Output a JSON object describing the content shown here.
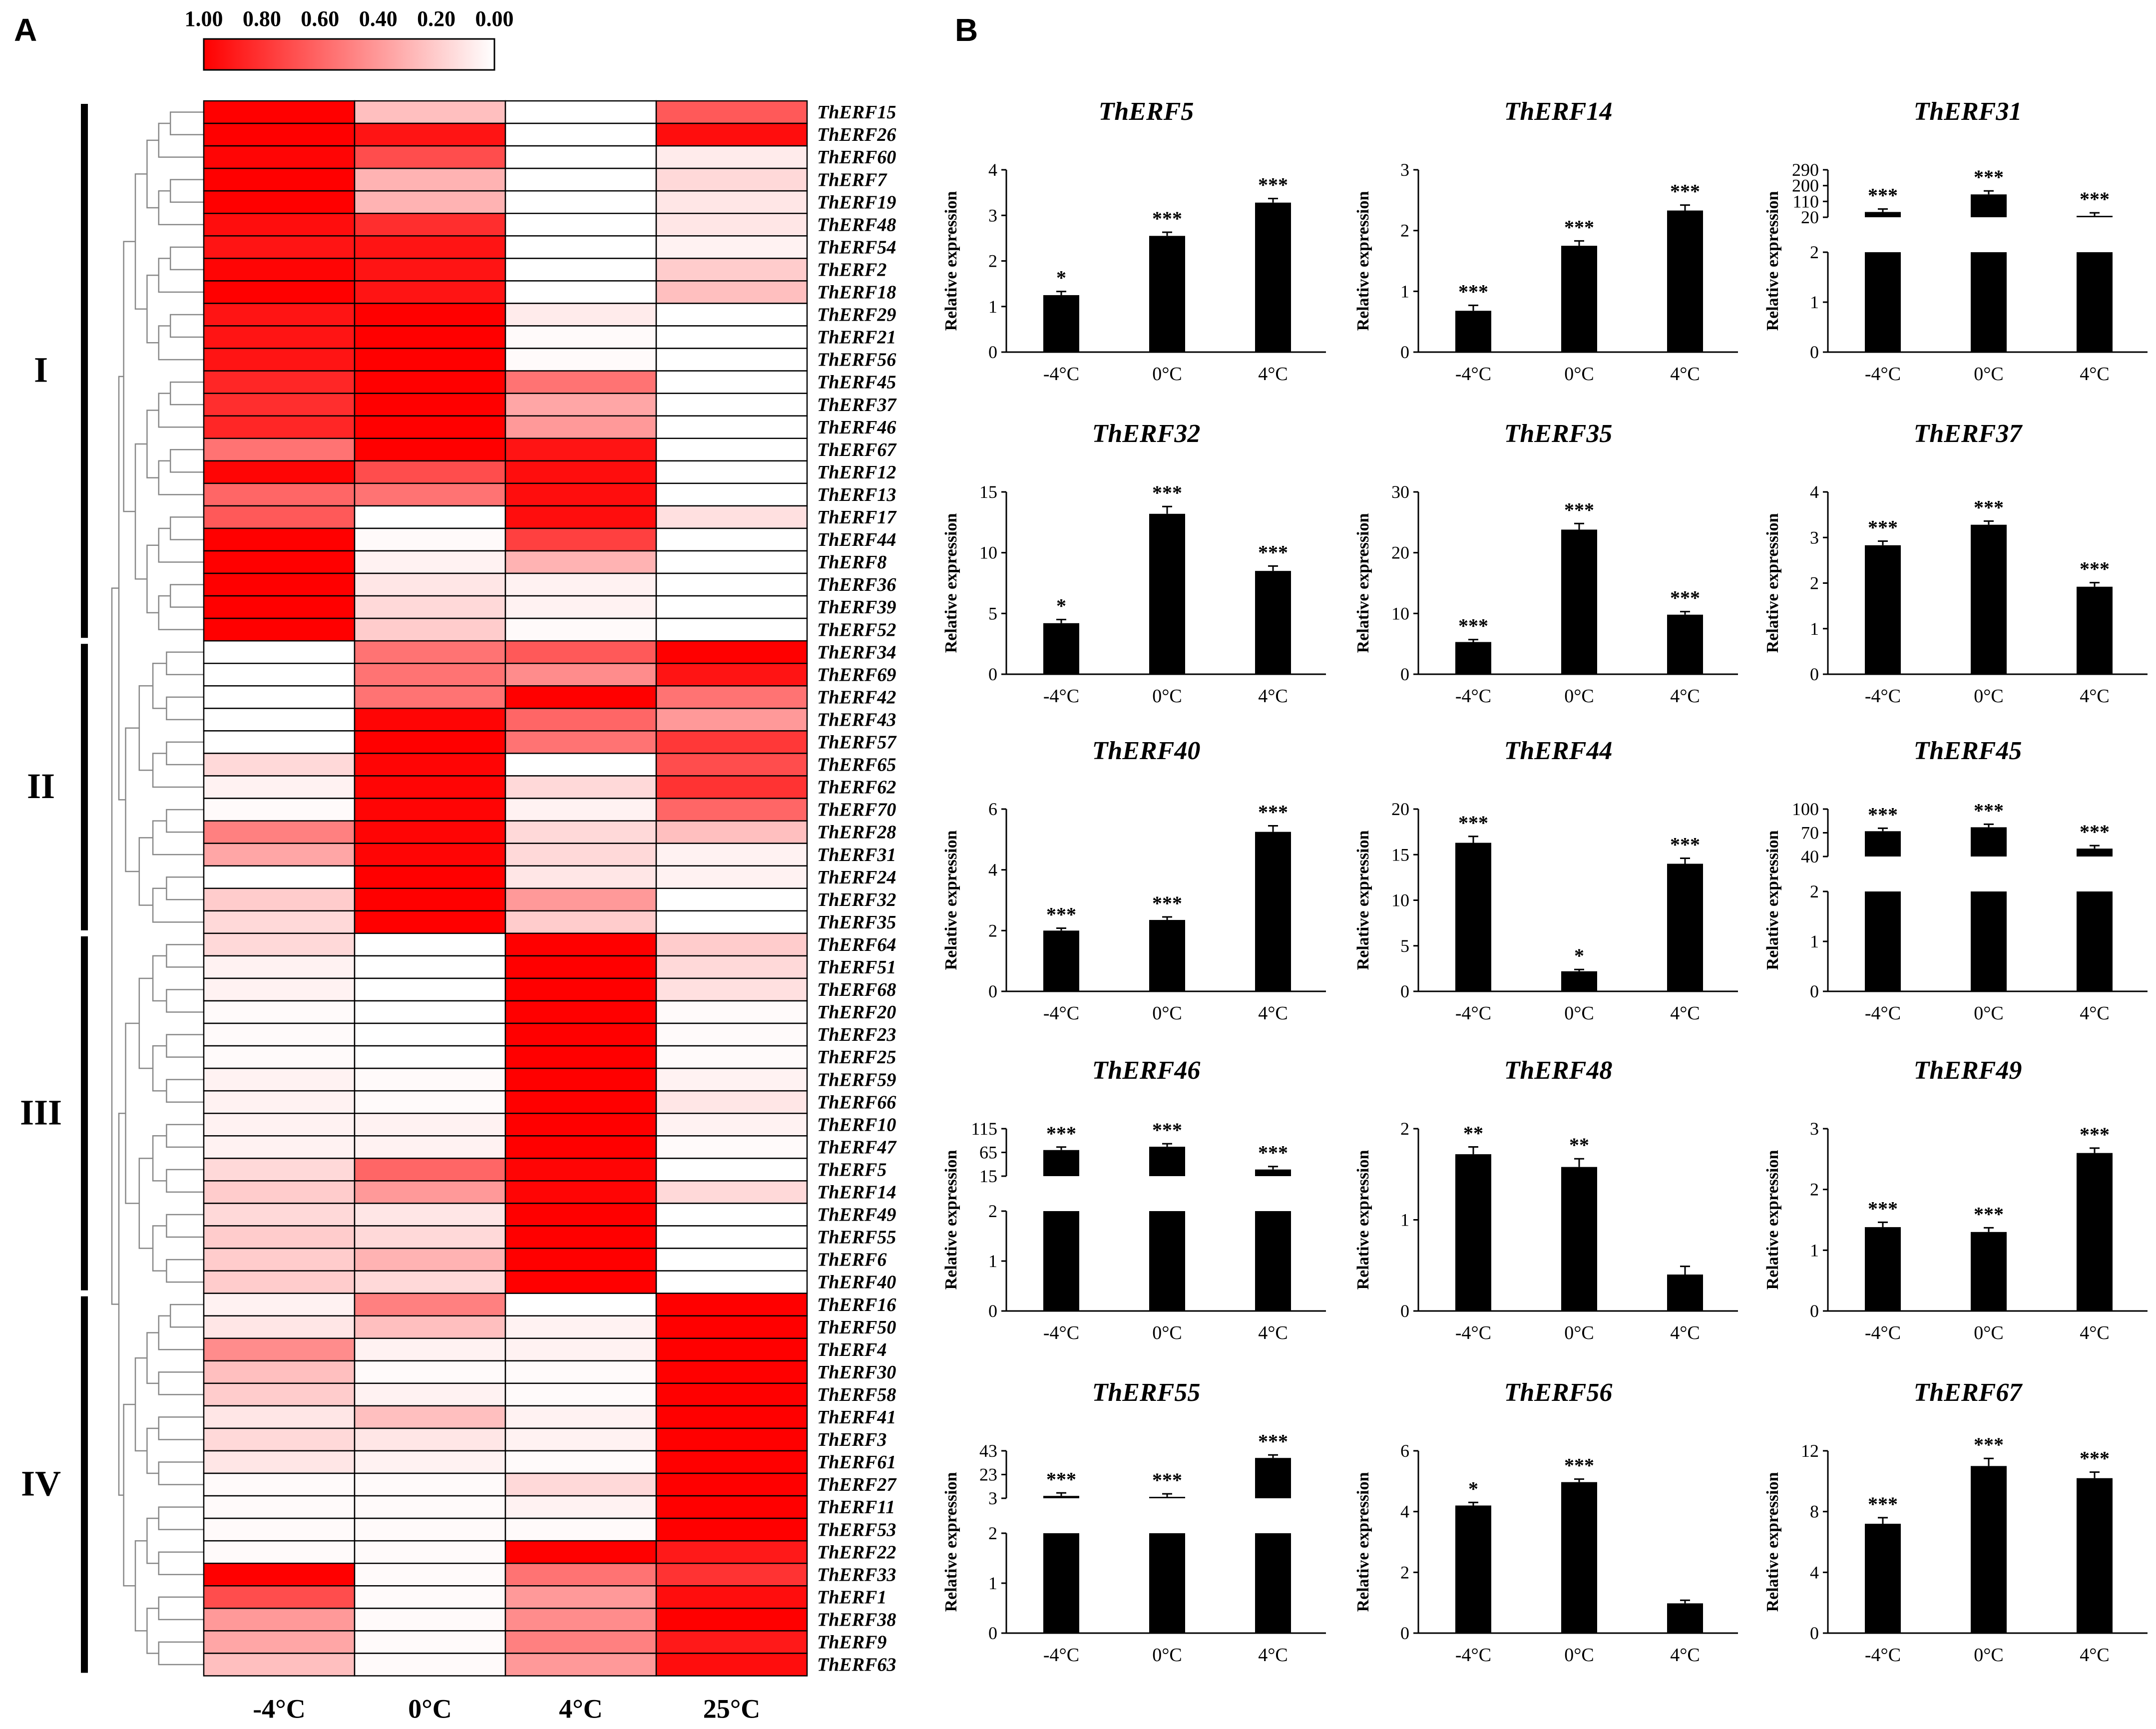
{
  "panel_labels": {
    "a": "A",
    "b": "B"
  },
  "colors": {
    "high": "#ff0000",
    "low": "#ffffff",
    "bar": "#000000"
  },
  "chart_data": [
    {
      "type": "heatmap",
      "panel": "A",
      "colorbar_ticks": [
        "1.00",
        "0.80",
        "0.60",
        "0.40",
        "0.20",
        "0.00"
      ],
      "columns": [
        "-4°C",
        "0°C",
        "4°C",
        "25°C"
      ],
      "groups": [
        {
          "label": "I",
          "size": 24
        },
        {
          "label": "II",
          "size": 13
        },
        {
          "label": "III",
          "size": 16
        },
        {
          "label": "IV",
          "size": 17
        }
      ],
      "rows": [
        "ThERF15",
        "ThERF26",
        "ThERF60",
        "ThERF7",
        "ThERF19",
        "ThERF48",
        "ThERF54",
        "ThERF2",
        "ThERF18",
        "ThERF29",
        "ThERF21",
        "ThERF56",
        "ThERF45",
        "ThERF37",
        "ThERF46",
        "ThERF67",
        "ThERF12",
        "ThERF13",
        "ThERF17",
        "ThERF44",
        "ThERF8",
        "ThERF36",
        "ThERF39",
        "ThERF52",
        "ThERF34",
        "ThERF69",
        "ThERF42",
        "ThERF43",
        "ThERF57",
        "ThERF65",
        "ThERF62",
        "ThERF70",
        "ThERF28",
        "ThERF31",
        "ThERF24",
        "ThERF32",
        "ThERF35",
        "ThERF64",
        "ThERF51",
        "ThERF68",
        "ThERF20",
        "ThERF23",
        "ThERF25",
        "ThERF59",
        "ThERF66",
        "ThERF10",
        "ThERF47",
        "ThERF5",
        "ThERF14",
        "ThERF49",
        "ThERF55",
        "ThERF6",
        "ThERF40",
        "ThERF16",
        "ThERF50",
        "ThERF4",
        "ThERF30",
        "ThERF58",
        "ThERF41",
        "ThERF3",
        "ThERF61",
        "ThERF27",
        "ThERF11",
        "ThERF53",
        "ThERF22",
        "ThERF33",
        "ThERF1",
        "ThERF38",
        "ThERF9",
        "ThERF63"
      ],
      "values": [
        [
          1.0,
          0.25,
          0.0,
          0.65
        ],
        [
          1.0,
          0.92,
          0.0,
          0.95
        ],
        [
          0.98,
          0.7,
          0.0,
          0.08
        ],
        [
          1.0,
          0.3,
          0.0,
          0.15
        ],
        [
          1.0,
          0.3,
          0.0,
          0.1
        ],
        [
          0.95,
          0.82,
          0.0,
          0.1
        ],
        [
          0.92,
          0.92,
          0.0,
          0.05
        ],
        [
          0.98,
          0.92,
          0.0,
          0.2
        ],
        [
          1.0,
          0.92,
          0.0,
          0.25
        ],
        [
          0.92,
          1.0,
          0.08,
          0.0
        ],
        [
          0.92,
          1.0,
          0.02,
          0.0
        ],
        [
          0.92,
          1.0,
          0.02,
          0.0
        ],
        [
          0.85,
          1.0,
          0.55,
          0.0
        ],
        [
          0.82,
          1.0,
          0.35,
          0.0
        ],
        [
          0.85,
          1.0,
          0.4,
          0.0
        ],
        [
          0.55,
          1.0,
          0.92,
          0.0
        ],
        [
          0.98,
          0.7,
          0.95,
          0.0
        ],
        [
          0.6,
          0.55,
          0.95,
          0.0
        ],
        [
          0.65,
          0.0,
          0.95,
          0.12
        ],
        [
          1.0,
          0.02,
          0.75,
          0.0
        ],
        [
          1.0,
          0.05,
          0.3,
          0.0
        ],
        [
          1.0,
          0.1,
          0.05,
          0.0
        ],
        [
          1.0,
          0.15,
          0.05,
          0.0
        ],
        [
          1.0,
          0.2,
          0.02,
          0.0
        ],
        [
          0.0,
          0.55,
          0.65,
          1.0
        ],
        [
          0.0,
          0.55,
          0.45,
          0.92
        ],
        [
          0.0,
          0.55,
          1.0,
          0.55
        ],
        [
          0.0,
          0.98,
          0.6,
          0.4
        ],
        [
          0.0,
          1.0,
          0.55,
          0.78
        ],
        [
          0.15,
          0.98,
          0.0,
          0.7
        ],
        [
          0.05,
          0.98,
          0.15,
          0.8
        ],
        [
          0.02,
          0.98,
          0.05,
          0.6
        ],
        [
          0.5,
          0.98,
          0.15,
          0.25
        ],
        [
          0.35,
          0.98,
          0.15,
          0.05
        ],
        [
          0.0,
          1.0,
          0.1,
          0.05
        ],
        [
          0.2,
          1.0,
          0.4,
          0.0
        ],
        [
          0.15,
          1.0,
          0.2,
          0.0
        ],
        [
          0.15,
          0.0,
          1.0,
          0.2
        ],
        [
          0.05,
          0.0,
          1.0,
          0.15
        ],
        [
          0.05,
          0.0,
          1.0,
          0.12
        ],
        [
          0.02,
          0.0,
          1.0,
          0.02
        ],
        [
          0.02,
          0.0,
          1.0,
          0.02
        ],
        [
          0.02,
          0.0,
          1.0,
          0.02
        ],
        [
          0.05,
          0.02,
          1.0,
          0.05
        ],
        [
          0.05,
          0.02,
          1.0,
          0.1
        ],
        [
          0.05,
          0.05,
          1.0,
          0.05
        ],
        [
          0.05,
          0.05,
          1.0,
          0.02
        ],
        [
          0.15,
          0.6,
          0.98,
          0.0
        ],
        [
          0.2,
          0.4,
          0.98,
          0.15
        ],
        [
          0.15,
          0.1,
          1.0,
          0.0
        ],
        [
          0.2,
          0.15,
          1.0,
          0.0
        ],
        [
          0.2,
          0.3,
          1.0,
          0.0
        ],
        [
          0.2,
          0.15,
          1.0,
          0.0
        ],
        [
          0.05,
          0.5,
          0.0,
          1.0
        ],
        [
          0.1,
          0.25,
          0.05,
          1.0
        ],
        [
          0.45,
          0.05,
          0.05,
          1.0
        ],
        [
          0.25,
          0.02,
          0.02,
          1.0
        ],
        [
          0.2,
          0.05,
          0.02,
          1.0
        ],
        [
          0.1,
          0.25,
          0.05,
          1.0
        ],
        [
          0.15,
          0.1,
          0.05,
          1.0
        ],
        [
          0.1,
          0.05,
          0.02,
          1.0
        ],
        [
          0.02,
          0.02,
          0.15,
          1.0
        ],
        [
          0.02,
          0.02,
          0.05,
          1.0
        ],
        [
          0.02,
          0.02,
          0.02,
          1.0
        ],
        [
          0.02,
          0.02,
          1.0,
          0.9
        ],
        [
          1.0,
          0.02,
          0.55,
          0.8
        ],
        [
          0.7,
          0.02,
          0.4,
          0.95
        ],
        [
          0.4,
          0.02,
          0.45,
          1.0
        ],
        [
          0.35,
          0.02,
          0.5,
          0.9
        ],
        [
          0.25,
          0.02,
          0.4,
          0.95
        ]
      ]
    },
    {
      "type": "bar",
      "panel": "B",
      "ylabel": "Relative expression",
      "categories": [
        "-4°C",
        "0°C",
        "4°C"
      ],
      "subplots": [
        {
          "title": "ThERF5",
          "values": [
            1.25,
            2.55,
            3.28
          ],
          "errors": [
            0.08,
            0.08,
            0.09
          ],
          "sig": [
            "*",
            "***",
            "***"
          ],
          "yticks": [
            "0",
            "1",
            "2",
            "3",
            "4"
          ],
          "ymax": 4
        },
        {
          "title": "ThERF14",
          "values": [
            0.68,
            1.75,
            2.33
          ],
          "errors": [
            0.09,
            0.08,
            0.09
          ],
          "sig": [
            "***",
            "***",
            "***"
          ],
          "yticks": [
            "0",
            "1",
            "2",
            "3"
          ],
          "ymax": 3
        },
        {
          "title": "ThERF31",
          "values": [
            50,
            150,
            25
          ],
          "errors": [
            10,
            20,
            5
          ],
          "sig": [
            "***",
            "***",
            "***"
          ],
          "broken": true,
          "lower_ticks": [
            "0",
            "1",
            "2"
          ],
          "upper_ticks": [
            "20",
            "110",
            "200",
            "290"
          ]
        },
        {
          "title": "ThERF32",
          "values": [
            4.2,
            13.2,
            8.5
          ],
          "errors": [
            0.3,
            0.6,
            0.4
          ],
          "sig": [
            "*",
            "***",
            "***"
          ],
          "yticks": [
            "0",
            "5",
            "10",
            "15"
          ],
          "ymax": 15
        },
        {
          "title": "ThERF35",
          "values": [
            5.3,
            23.8,
            9.8
          ],
          "errors": [
            0.4,
            1.0,
            0.5
          ],
          "sig": [
            "***",
            "***",
            "***"
          ],
          "yticks": [
            "0",
            "10",
            "20",
            "30"
          ],
          "ymax": 30
        },
        {
          "title": "ThERF37",
          "values": [
            2.83,
            3.28,
            1.92
          ],
          "errors": [
            0.09,
            0.08,
            0.09
          ],
          "sig": [
            "***",
            "***",
            "***"
          ],
          "yticks": [
            "0",
            "1",
            "2",
            "3",
            "4"
          ],
          "ymax": 4
        },
        {
          "title": "ThERF40",
          "values": [
            2.0,
            2.35,
            5.25
          ],
          "errors": [
            0.08,
            0.1,
            0.2
          ],
          "sig": [
            "***",
            "***",
            "***"
          ],
          "yticks": [
            "0",
            "2",
            "4",
            "6"
          ],
          "ymax": 6
        },
        {
          "title": "ThERF44",
          "values": [
            16.3,
            2.2,
            14.0
          ],
          "errors": [
            0.7,
            0.2,
            0.6
          ],
          "sig": [
            "***",
            "*",
            "***"
          ],
          "yticks": [
            "0",
            "5",
            "10",
            "15",
            "20"
          ],
          "ymax": 20
        },
        {
          "title": "ThERF45",
          "values": [
            72,
            77,
            50
          ],
          "errors": [
            3,
            3,
            3
          ],
          "sig": [
            "***",
            "***",
            "***"
          ],
          "broken": true,
          "lower_ticks": [
            "0",
            "1",
            "2"
          ],
          "upper_ticks": [
            "40",
            "70",
            "100"
          ]
        },
        {
          "title": "ThERF46",
          "values": [
            70,
            77,
            29
          ],
          "errors": [
            3,
            3,
            2
          ],
          "sig": [
            "***",
            "***",
            "***"
          ],
          "broken": true,
          "lower_ticks": [
            "0",
            "1",
            "2"
          ],
          "upper_ticks": [
            "15",
            "65",
            "115"
          ]
        },
        {
          "title": "ThERF48",
          "values": [
            1.72,
            1.58,
            0.4
          ],
          "errors": [
            0.08,
            0.09,
            0.09
          ],
          "sig": [
            "**",
            "**",
            ""
          ],
          "yticks": [
            "0",
            "1",
            "2"
          ],
          "ymax": 2
        },
        {
          "title": "ThERF49",
          "values": [
            1.38,
            1.3,
            2.6
          ],
          "errors": [
            0.08,
            0.07,
            0.08
          ],
          "sig": [
            "***",
            "***",
            "***"
          ],
          "yticks": [
            "0",
            "1",
            "2",
            "3"
          ],
          "ymax": 3
        },
        {
          "title": "ThERF55",
          "values": [
            5,
            4,
            37
          ],
          "errors": [
            0.5,
            0.5,
            1.5
          ],
          "sig": [
            "***",
            "***",
            "***"
          ],
          "broken": true,
          "lower_ticks": [
            "0",
            "1",
            "2"
          ],
          "upper_ticks": [
            "3",
            "23",
            "43"
          ]
        },
        {
          "title": "ThERF56",
          "values": [
            4.2,
            4.97,
            0.98
          ],
          "errors": [
            0.1,
            0.1,
            0.1
          ],
          "sig": [
            "*",
            "***",
            ""
          ],
          "yticks": [
            "0",
            "2",
            "4",
            "6"
          ],
          "ymax": 6
        },
        {
          "title": "ThERF67",
          "values": [
            7.2,
            11.0,
            10.2
          ],
          "errors": [
            0.4,
            0.5,
            0.4
          ],
          "sig": [
            "***",
            "***",
            "***"
          ],
          "yticks": [
            "0",
            "4",
            "8",
            "12"
          ],
          "ymax": 12
        }
      ]
    }
  ]
}
